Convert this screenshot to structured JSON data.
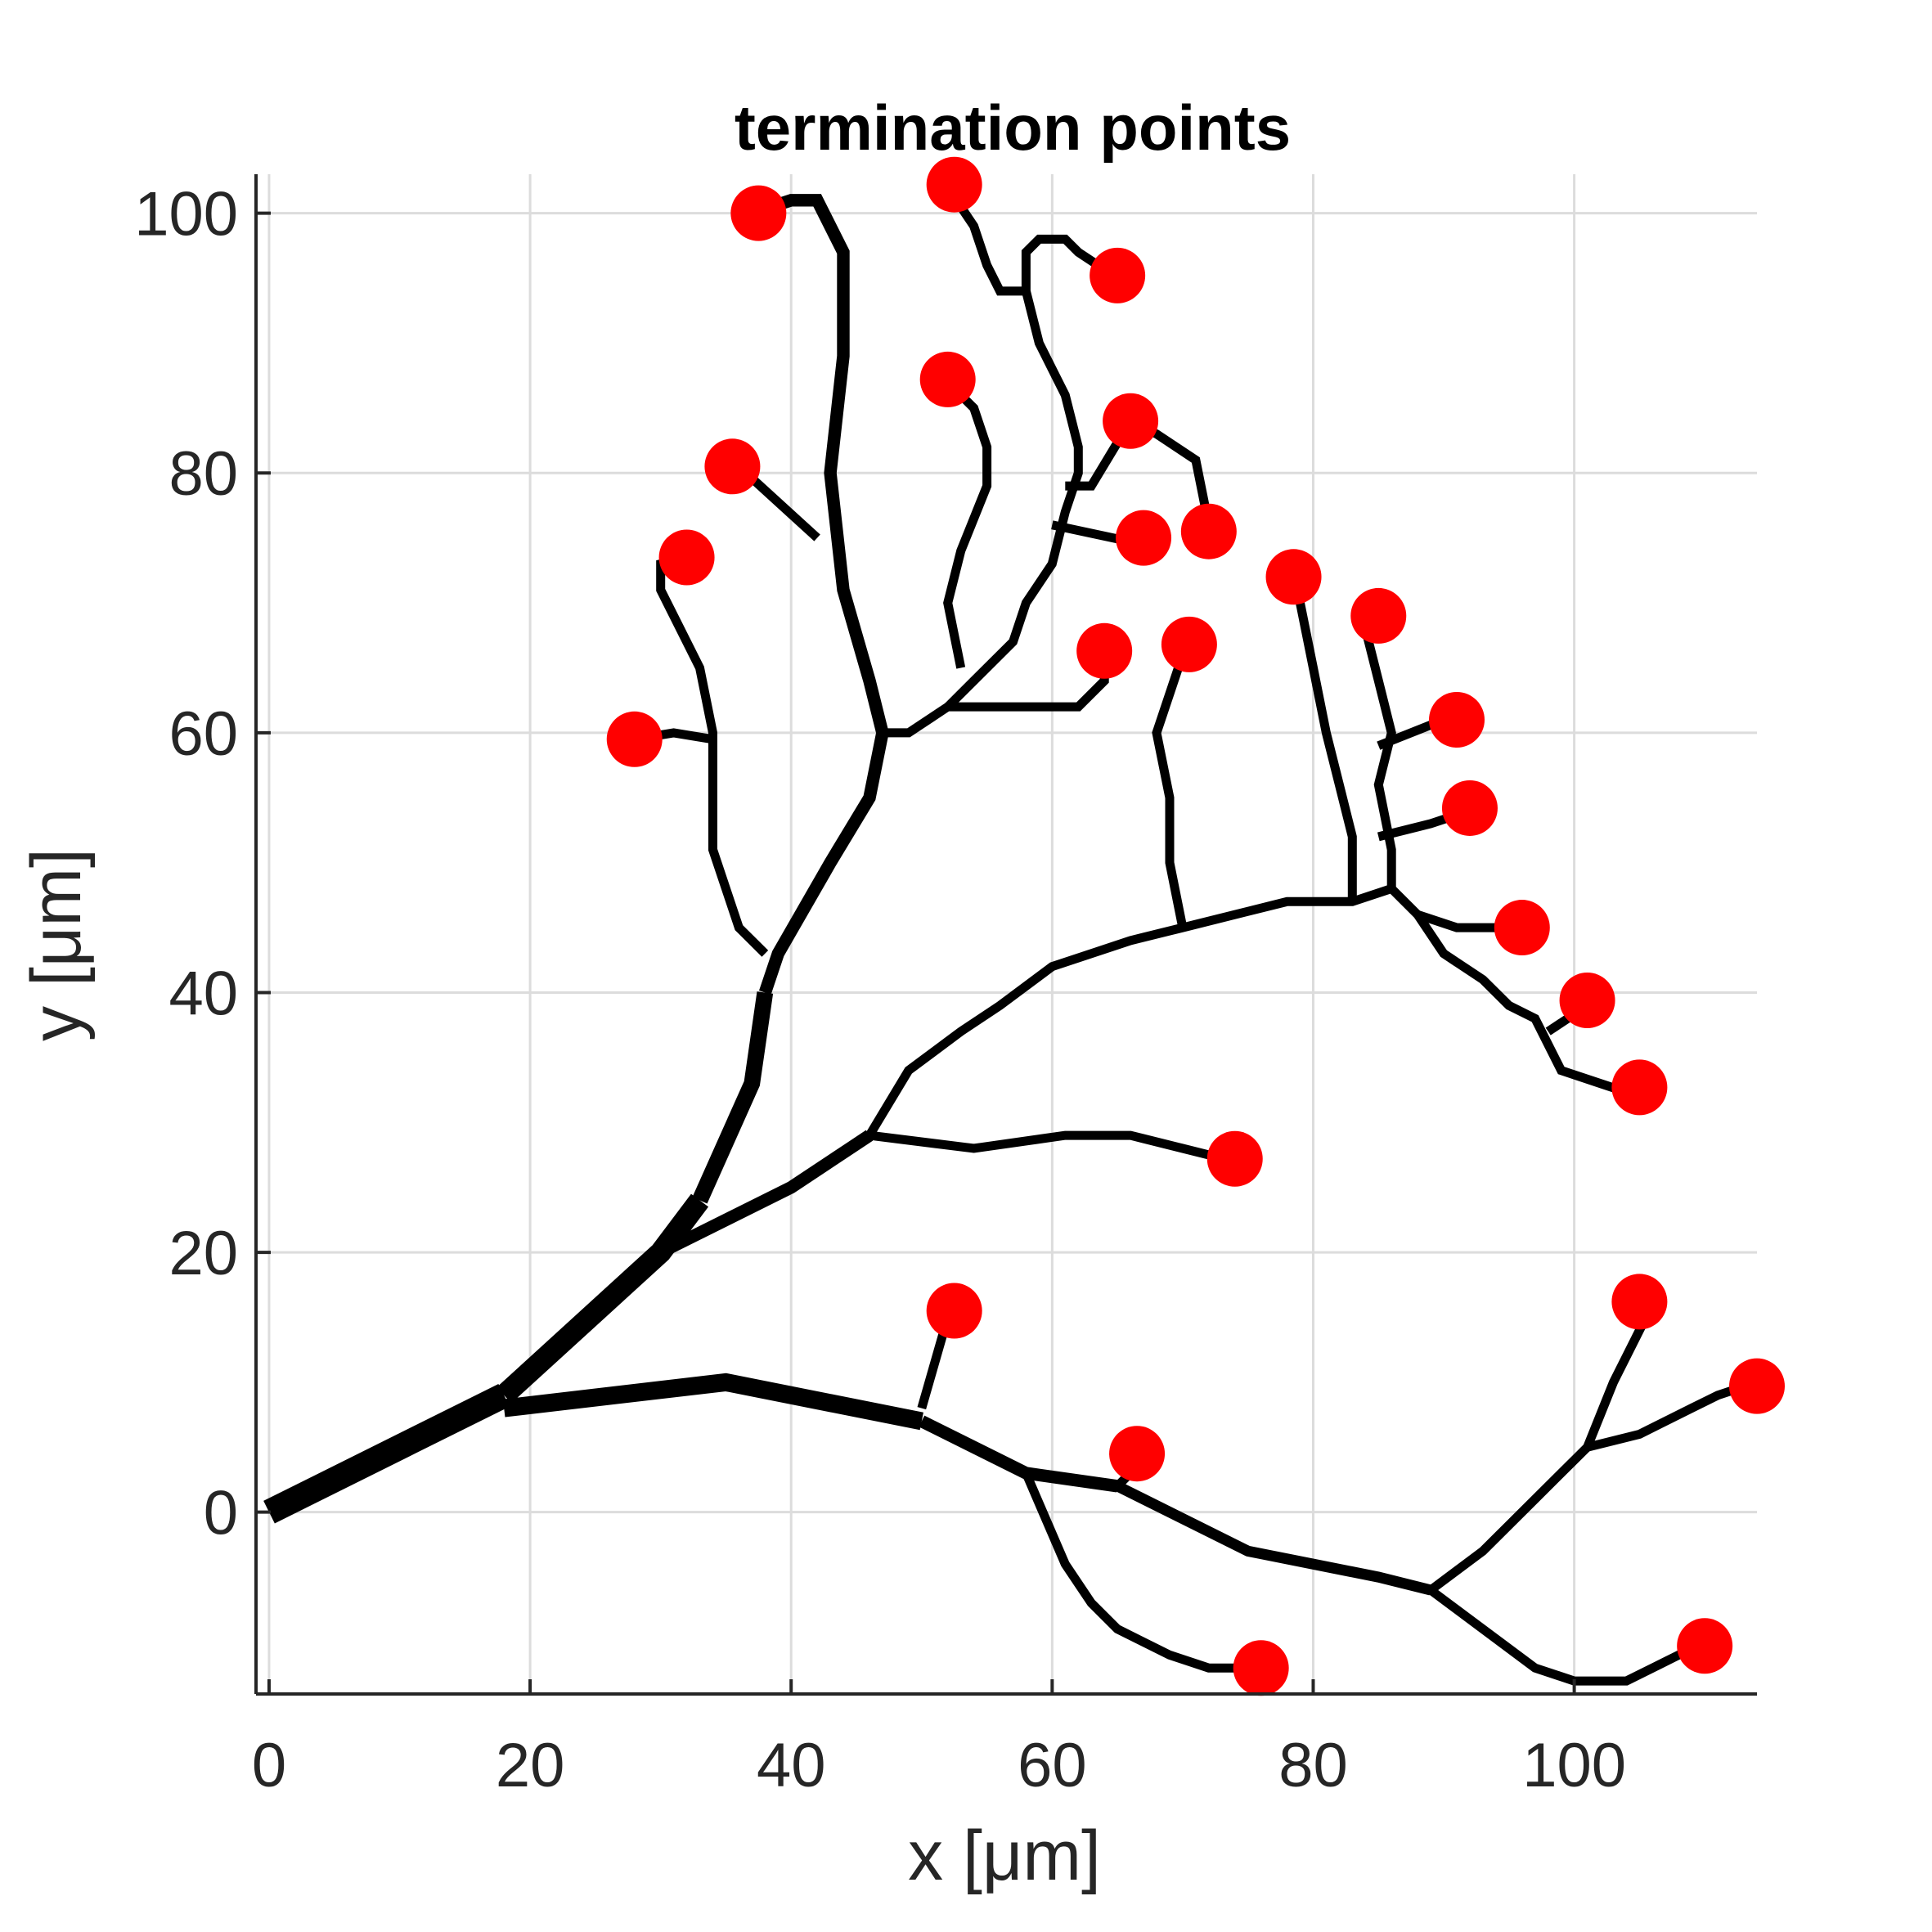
{
  "chart_data": {
    "type": "scatter",
    "title": "termination points",
    "xlabel": "x [μm]",
    "ylabel": "y [μm]",
    "xlim": [
      -1,
      114
    ],
    "ylim": [
      -14,
      103
    ],
    "xticks": [
      "0",
      "20",
      "40",
      "60",
      "80",
      "100"
    ],
    "yticks": [
      "0",
      "20",
      "40",
      "60",
      "80",
      "100"
    ],
    "grid": true,
    "colors": {
      "tree": "#000000",
      "points": "#ff0000",
      "grid": "#dcdcdc",
      "axes": "#262626"
    },
    "tree_segments": [
      {
        "w": 14,
        "pts": [
          [
            0,
            0
          ],
          [
            10,
            5
          ],
          [
            18,
            9
          ]
        ]
      },
      {
        "w": 12,
        "pts": [
          [
            18,
            9
          ],
          [
            30,
            20
          ],
          [
            33,
            24
          ]
        ]
      },
      {
        "w": 9,
        "pts": [
          [
            33,
            24
          ],
          [
            37,
            33
          ],
          [
            38,
            40
          ]
        ]
      },
      {
        "w": 7,
        "pts": [
          [
            38,
            40
          ],
          [
            39,
            43
          ],
          [
            43,
            50
          ],
          [
            46,
            55
          ],
          [
            47,
            60
          ],
          [
            46,
            64
          ],
          [
            44,
            71
          ],
          [
            43,
            80
          ],
          [
            44,
            89
          ],
          [
            44,
            97
          ],
          [
            42,
            101
          ],
          [
            40,
            101
          ],
          [
            37,
            100
          ]
        ]
      },
      {
        "w": 5,
        "pts": [
          [
            38,
            43
          ],
          [
            36,
            45
          ],
          [
            34,
            51
          ],
          [
            34,
            60
          ],
          [
            33,
            65
          ],
          [
            30,
            71
          ],
          [
            30,
            73
          ],
          [
            32,
            73.5
          ]
        ]
      },
      {
        "w": 5,
        "pts": [
          [
            34,
            59.5
          ],
          [
            31,
            60
          ],
          [
            28,
            59.5
          ]
        ]
      },
      {
        "w": 5,
        "pts": [
          [
            42,
            75
          ],
          [
            36,
            80.5
          ]
        ]
      },
      {
        "w": 5,
        "pts": [
          [
            47,
            60
          ],
          [
            49,
            60
          ],
          [
            52,
            62
          ],
          [
            55,
            62
          ],
          [
            58,
            62
          ],
          [
            62,
            62
          ],
          [
            64,
            64
          ],
          [
            64,
            66
          ]
        ]
      },
      {
        "w": 5,
        "pts": [
          [
            52,
            62
          ],
          [
            54,
            64
          ],
          [
            57,
            67
          ],
          [
            58,
            70
          ],
          [
            60,
            73
          ],
          [
            61,
            77
          ],
          [
            62,
            80
          ],
          [
            62,
            82
          ],
          [
            61,
            86
          ],
          [
            60,
            88
          ],
          [
            59,
            90
          ],
          [
            58,
            94
          ],
          [
            58,
            97
          ],
          [
            59,
            98
          ],
          [
            61,
            98
          ],
          [
            62,
            97
          ],
          [
            65,
            95
          ]
        ]
      },
      {
        "w": 5,
        "pts": [
          [
            53,
            65
          ],
          [
            52,
            70
          ],
          [
            53,
            74
          ],
          [
            55,
            79
          ],
          [
            55,
            82
          ],
          [
            54,
            85
          ],
          [
            52,
            87
          ]
        ]
      },
      {
        "w": 5,
        "pts": [
          [
            58,
            94
          ],
          [
            56,
            94
          ],
          [
            55,
            96
          ],
          [
            54,
            99
          ],
          [
            52,
            102
          ]
        ]
      },
      {
        "w": 5,
        "pts": [
          [
            60,
            76
          ],
          [
            67,
            74.5
          ]
        ]
      },
      {
        "w": 5,
        "pts": [
          [
            61,
            79
          ],
          [
            63,
            79
          ],
          [
            66,
            84
          ],
          [
            68,
            83
          ],
          [
            71,
            81
          ],
          [
            72,
            76
          ]
        ]
      },
      {
        "w": 10,
        "pts": [
          [
            18,
            8
          ],
          [
            35,
            10
          ],
          [
            50,
            7
          ]
        ]
      },
      {
        "w": 7,
        "pts": [
          [
            50,
            7
          ],
          [
            58,
            3
          ],
          [
            65,
            2
          ]
        ]
      },
      {
        "w": 6,
        "pts": [
          [
            65,
            2
          ],
          [
            75,
            -3
          ],
          [
            85,
            -5
          ],
          [
            89,
            -6
          ]
        ]
      },
      {
        "w": 5,
        "pts": [
          [
            50,
            8
          ],
          [
            52,
            15
          ]
        ]
      },
      {
        "w": 5,
        "pts": [
          [
            65,
            2
          ],
          [
            67,
            4
          ]
        ]
      },
      {
        "w": 5,
        "pts": [
          [
            58,
            3
          ],
          [
            61,
            -4
          ],
          [
            63,
            -7
          ],
          [
            65,
            -9
          ],
          [
            69,
            -11
          ],
          [
            72,
            -12
          ],
          [
            76,
            -12
          ]
        ]
      },
      {
        "w": 5,
        "pts": [
          [
            89,
            -6
          ],
          [
            93,
            -3
          ],
          [
            97,
            1
          ],
          [
            101,
            5
          ],
          [
            103,
            10
          ],
          [
            105,
            14
          ],
          [
            106,
            16
          ]
        ]
      },
      {
        "w": 5,
        "pts": [
          [
            89,
            -6
          ],
          [
            97,
            -12
          ],
          [
            100,
            -13
          ],
          [
            104,
            -13
          ],
          [
            110,
            -10
          ]
        ]
      },
      {
        "w": 5,
        "pts": [
          [
            101,
            5
          ],
          [
            105,
            6
          ],
          [
            109,
            8
          ],
          [
            111,
            9
          ],
          [
            114,
            10
          ]
        ]
      },
      {
        "w": 7,
        "pts": [
          [
            30,
            20
          ],
          [
            40,
            25
          ],
          [
            46,
            29
          ]
        ]
      },
      {
        "w": 5,
        "pts": [
          [
            46,
            29
          ],
          [
            54,
            28
          ],
          [
            61,
            29
          ],
          [
            66,
            29
          ],
          [
            70,
            28
          ],
          [
            74,
            27
          ]
        ]
      },
      {
        "w": 5,
        "pts": [
          [
            46,
            29
          ],
          [
            49,
            34
          ],
          [
            53,
            37
          ],
          [
            56,
            39
          ],
          [
            60,
            42
          ],
          [
            63,
            43
          ],
          [
            66,
            44
          ],
          [
            70,
            45
          ],
          [
            74,
            46
          ],
          [
            78,
            47
          ],
          [
            83,
            47
          ],
          [
            86,
            48
          ],
          [
            88,
            46
          ],
          [
            90,
            43
          ],
          [
            93,
            41
          ],
          [
            95,
            39
          ],
          [
            97,
            38
          ],
          [
            99,
            34
          ],
          [
            102,
            33
          ],
          [
            105,
            32
          ]
        ]
      },
      {
        "w": 5,
        "pts": [
          [
            70,
            45
          ],
          [
            69,
            50
          ],
          [
            69,
            55
          ],
          [
            68,
            60
          ],
          [
            70,
            66
          ]
        ]
      },
      {
        "w": 5,
        "pts": [
          [
            83,
            47
          ],
          [
            83,
            52
          ],
          [
            82,
            56
          ],
          [
            81,
            60
          ],
          [
            80,
            65
          ],
          [
            79,
            70
          ],
          [
            78,
            72
          ]
        ]
      },
      {
        "w": 5,
        "pts": [
          [
            86,
            48
          ],
          [
            86,
            51
          ],
          [
            85,
            56
          ],
          [
            86,
            60
          ],
          [
            85,
            64
          ],
          [
            84,
            68
          ],
          [
            85,
            69
          ]
        ]
      },
      {
        "w": 5,
        "pts": [
          [
            85,
            59
          ],
          [
            90,
            61
          ]
        ]
      },
      {
        "w": 5,
        "pts": [
          [
            85,
            52
          ],
          [
            89,
            53
          ],
          [
            92,
            54
          ]
        ]
      },
      {
        "w": 5,
        "pts": [
          [
            88,
            46
          ],
          [
            91,
            45
          ],
          [
            96,
            45
          ]
        ]
      },
      {
        "w": 5,
        "pts": [
          [
            98,
            37
          ],
          [
            101,
            39
          ]
        ]
      }
    ],
    "termination_points": [
      [
        37.5,
        100
      ],
      [
        52.5,
        102.2
      ],
      [
        65,
        95.2
      ],
      [
        52,
        87.2
      ],
      [
        66,
        84
      ],
      [
        35.5,
        80.5
      ],
      [
        67,
        75
      ],
      [
        72,
        75.5
      ],
      [
        32,
        73.5
      ],
      [
        78.5,
        72
      ],
      [
        85,
        69
      ],
      [
        64,
        66.3
      ],
      [
        70.5,
        66.8
      ],
      [
        91,
        61
      ],
      [
        28,
        59.5
      ],
      [
        92,
        54.2
      ],
      [
        96,
        45
      ],
      [
        101,
        39.4
      ],
      [
        105,
        32.7
      ],
      [
        74,
        27.2
      ],
      [
        52.5,
        15.5
      ],
      [
        105,
        16.2
      ],
      [
        114,
        9.7
      ],
      [
        66.5,
        4.5
      ],
      [
        76,
        -12
      ],
      [
        110,
        -10.3
      ]
    ]
  }
}
